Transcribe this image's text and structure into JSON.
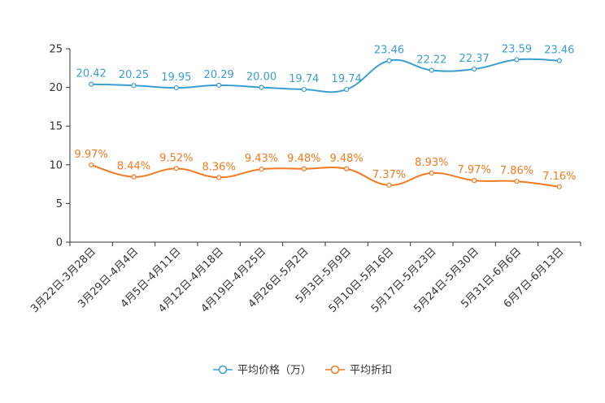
{
  "chart_data": {
    "type": "line",
    "title": "",
    "xlabel": "",
    "ylabel": "",
    "ylim": [
      0,
      25
    ],
    "yticks": [
      0,
      5,
      10,
      15,
      20,
      25
    ],
    "grid": false,
    "legend_position": "bottom",
    "categories": [
      "3月22日-3月28日",
      "3月29日-4月4日",
      "4月5日-4月11日",
      "4月12日-4月18日",
      "4月19日-4月25日",
      "4月26日-5月2日",
      "5月3日-5月9日",
      "5月10日-5月16日",
      "5月17日-5月23日",
      "5月24日-5月30日",
      "5月31日-6月6日",
      "6月7日-6月13日"
    ],
    "series": [
      {
        "name": "平均价格（万）",
        "color": "#3a9fd0",
        "values": [
          20.42,
          20.25,
          19.95,
          20.29,
          20.0,
          19.74,
          19.74,
          23.46,
          22.22,
          22.37,
          23.59,
          23.46
        ],
        "labels": [
          "20.42",
          "20.25",
          "19.95",
          "20.29",
          "20.00",
          "19.74",
          "19.74",
          "23.46",
          "22.22",
          "22.37",
          "23.59",
          "23.46"
        ]
      },
      {
        "name": "平均折扣",
        "color": "#f47a1f",
        "values": [
          9.97,
          8.44,
          9.52,
          8.36,
          9.43,
          9.48,
          9.48,
          7.37,
          8.93,
          7.97,
          7.86,
          7.16
        ],
        "labels": [
          "9.97%",
          "8.44%",
          "9.52%",
          "8.36%",
          "9.43%",
          "9.48%",
          "9.48%",
          "7.37%",
          "8.93%",
          "7.97%",
          "7.86%",
          "7.16%"
        ]
      }
    ]
  }
}
